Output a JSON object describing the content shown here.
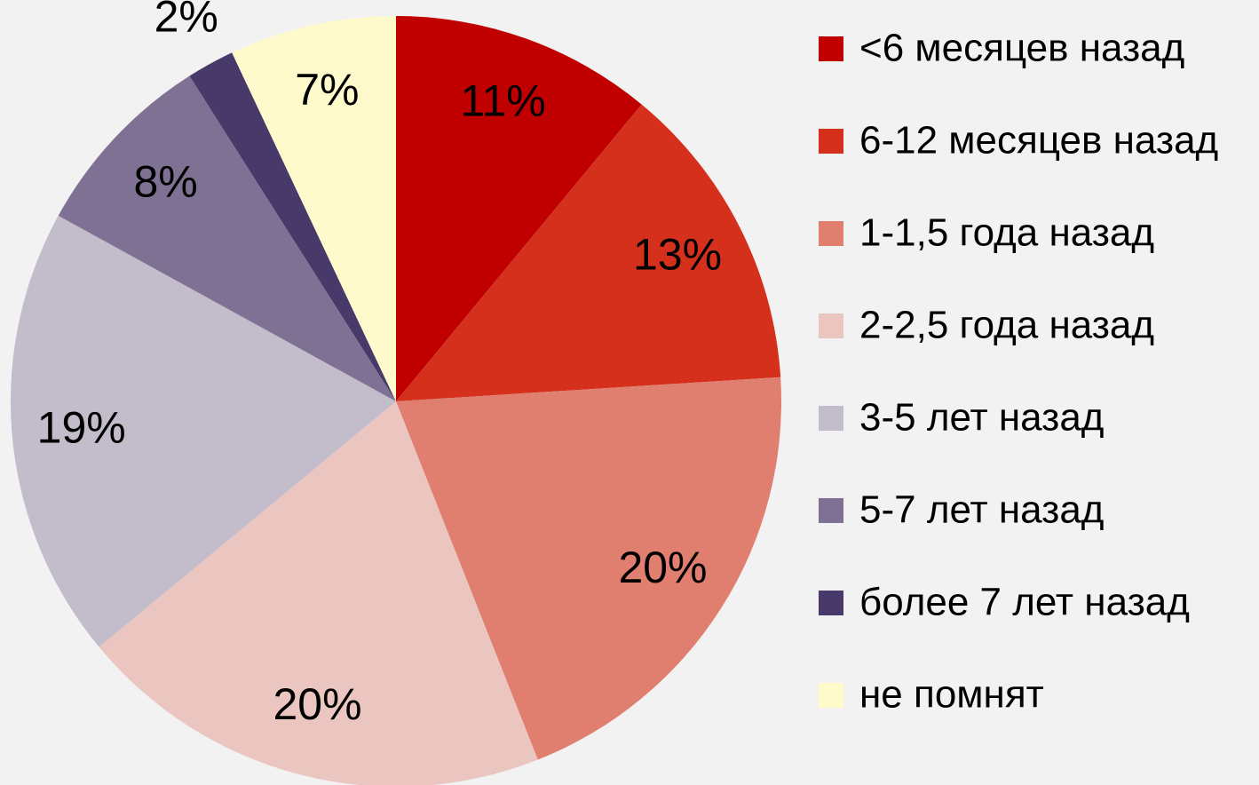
{
  "chart_data": {
    "type": "pie",
    "categories": [
      "<6 месяцев назад",
      "6-12 месяцев назад",
      "1-1,5 года назад",
      "2-2,5 года назад",
      "3-5 лет назад",
      "5-7 лет назад",
      "более 7 лет назад",
      "не помнят"
    ],
    "values": [
      11,
      13,
      20,
      20,
      19,
      8,
      2,
      7
    ],
    "value_labels": [
      "11%",
      "13%",
      "20%",
      "20%",
      "19%",
      "8%",
      "2%",
      "7%"
    ],
    "colors": [
      "#c00000",
      "#d5301c",
      "#e07e70",
      "#ebc6c0",
      "#c2bccb",
      "#7f7193",
      "#473a6a",
      "#fffacc"
    ],
    "legend": "right"
  }
}
